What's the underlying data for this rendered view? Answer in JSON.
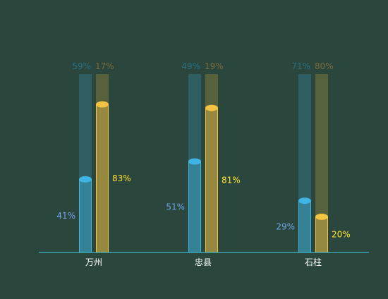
{
  "chart_data": {
    "type": "bar",
    "title": "",
    "xlabel": "",
    "ylabel": "",
    "ylim": [
      0,
      100
    ],
    "categories": [
      "万州",
      "忠县",
      "石柱"
    ],
    "series": [
      {
        "color": "#3fb5e6",
        "values": [
          41,
          51,
          29
        ],
        "remainder": [
          59,
          49,
          71
        ],
        "label_color": "#6fa3e8",
        "remainder_label_color": "#2b6f83"
      },
      {
        "color": "#f5c342",
        "values": [
          83,
          81,
          20
        ],
        "remainder": [
          17,
          19,
          80
        ],
        "label_color": "#ffe033",
        "remainder_label_color": "#7a6a3c"
      }
    ],
    "value_labels": [
      [
        "41%",
        "51%",
        "29%"
      ],
      [
        "83%",
        "81%",
        "20%"
      ]
    ],
    "remainder_labels": [
      [
        "59%",
        "49%",
        "71%"
      ],
      [
        "17%",
        "19%",
        "80%"
      ]
    ],
    "grid": false,
    "legend": "none",
    "axis_color": "#3fd0e6"
  }
}
